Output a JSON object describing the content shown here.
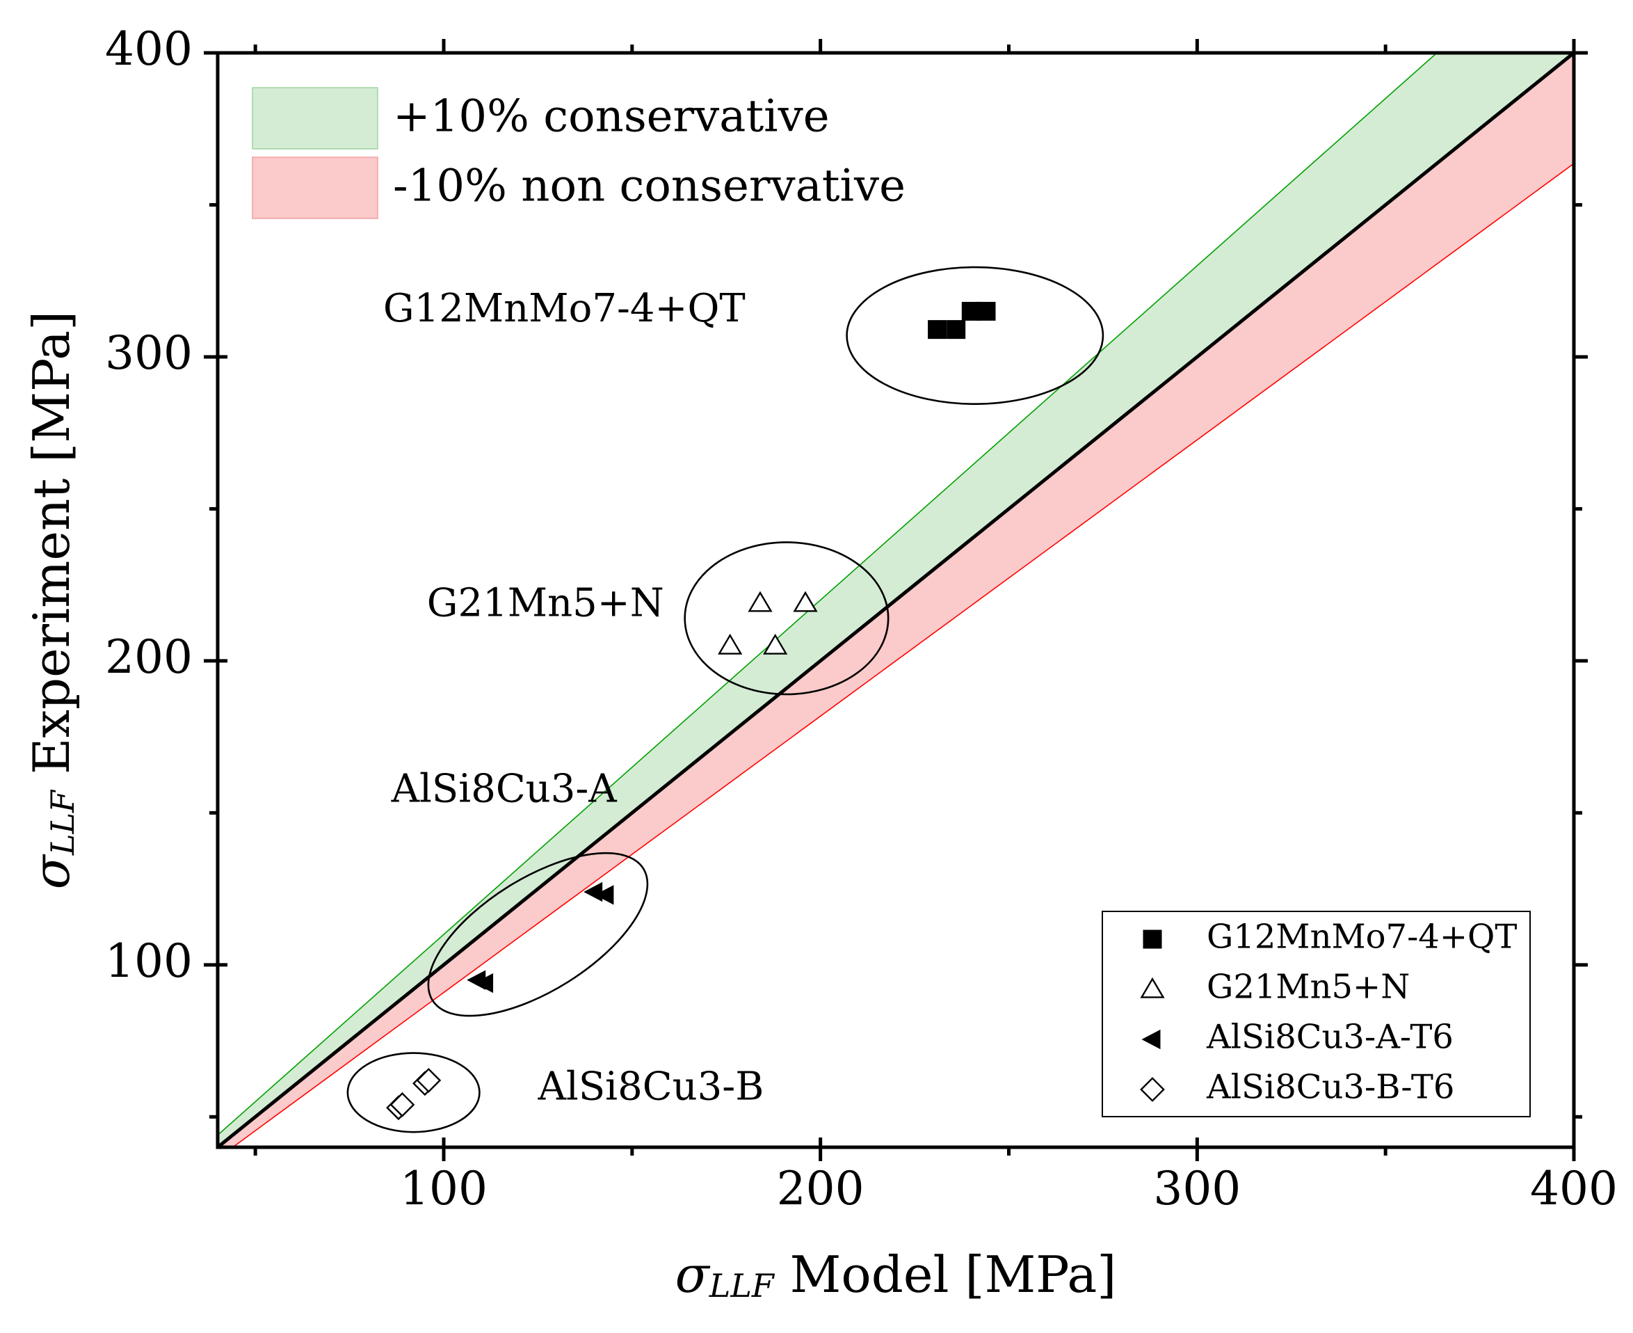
{
  "chart_data": {
    "type": "scatter",
    "title": "",
    "xlabel": {
      "symbol": "σ",
      "subscript": "LLF",
      "text": "Model [MPa]"
    },
    "ylabel": {
      "symbol": "σ",
      "subscript": "LLF",
      "text": "Experiment [MPa]"
    },
    "xlim": [
      40,
      400
    ],
    "ylim": [
      40,
      400
    ],
    "x_ticks": [
      "100",
      "200",
      "300",
      "400"
    ],
    "y_ticks": [
      "100",
      "200",
      "300",
      "400"
    ],
    "x_tick_values": [
      100,
      200,
      300,
      400
    ],
    "y_tick_values": [
      100,
      200,
      300,
      400
    ],
    "minor_tick_step": 50,
    "reference_line": {
      "type": "y = x"
    },
    "bands": [
      {
        "name": "+10% conservative",
        "factor": 1.1,
        "color": "#d4ecd4",
        "edge_color": "#00a000"
      },
      {
        "name": "-10% non conservative",
        "factor": 0.909,
        "color": "#fbcaca",
        "edge_color": "#ff0000"
      }
    ],
    "series": [
      {
        "name": "G12MnMo7-4+QT",
        "marker": "square-filled",
        "points": [
          [
            231,
            309
          ],
          [
            236,
            309
          ],
          [
            240,
            315
          ],
          [
            244,
            315
          ]
        ]
      },
      {
        "name": "G21Mn5+N",
        "marker": "triangle-open",
        "points": [
          [
            184,
            219
          ],
          [
            196,
            219
          ],
          [
            176,
            205
          ],
          [
            188,
            205
          ]
        ]
      },
      {
        "name": "AlSi8Cu3-A-T6",
        "marker": "triangle-left-filled",
        "points": [
          [
            140,
            124
          ],
          [
            143,
            123
          ],
          [
            109,
            95
          ],
          [
            111,
            94
          ]
        ]
      },
      {
        "name": "AlSi8Cu3-B-T6",
        "marker": "diamond-open",
        "points": [
          [
            88,
            53
          ],
          [
            89,
            54
          ],
          [
            95,
            61
          ],
          [
            96,
            62
          ]
        ]
      }
    ],
    "group_annotations": [
      {
        "text": "G12MnMo7-4+QT",
        "x": 132,
        "y": 315
      },
      {
        "text": "G21Mn5+N",
        "x": 127,
        "y": 218
      },
      {
        "text": "AlSi8Cu3-A",
        "x": 116,
        "y": 157
      },
      {
        "text": "AlSi8Cu3-B",
        "x": 155,
        "y": 59
      }
    ],
    "group_ellipses": [
      {
        "cx": 241,
        "cy": 307,
        "rx": 34,
        "ry": 22.5,
        "rotate": 0
      },
      {
        "cx": 191,
        "cy": 214,
        "rx": 27,
        "ry": 25,
        "rotate": 0
      },
      {
        "cx": 125,
        "cy": 110,
        "rx": 33,
        "ry": 18.5,
        "rotate": -32
      },
      {
        "cx": 92,
        "cy": 58,
        "rx": 17.5,
        "ry": 13,
        "rotate": 0
      }
    ],
    "legend_position": "lower-right"
  }
}
